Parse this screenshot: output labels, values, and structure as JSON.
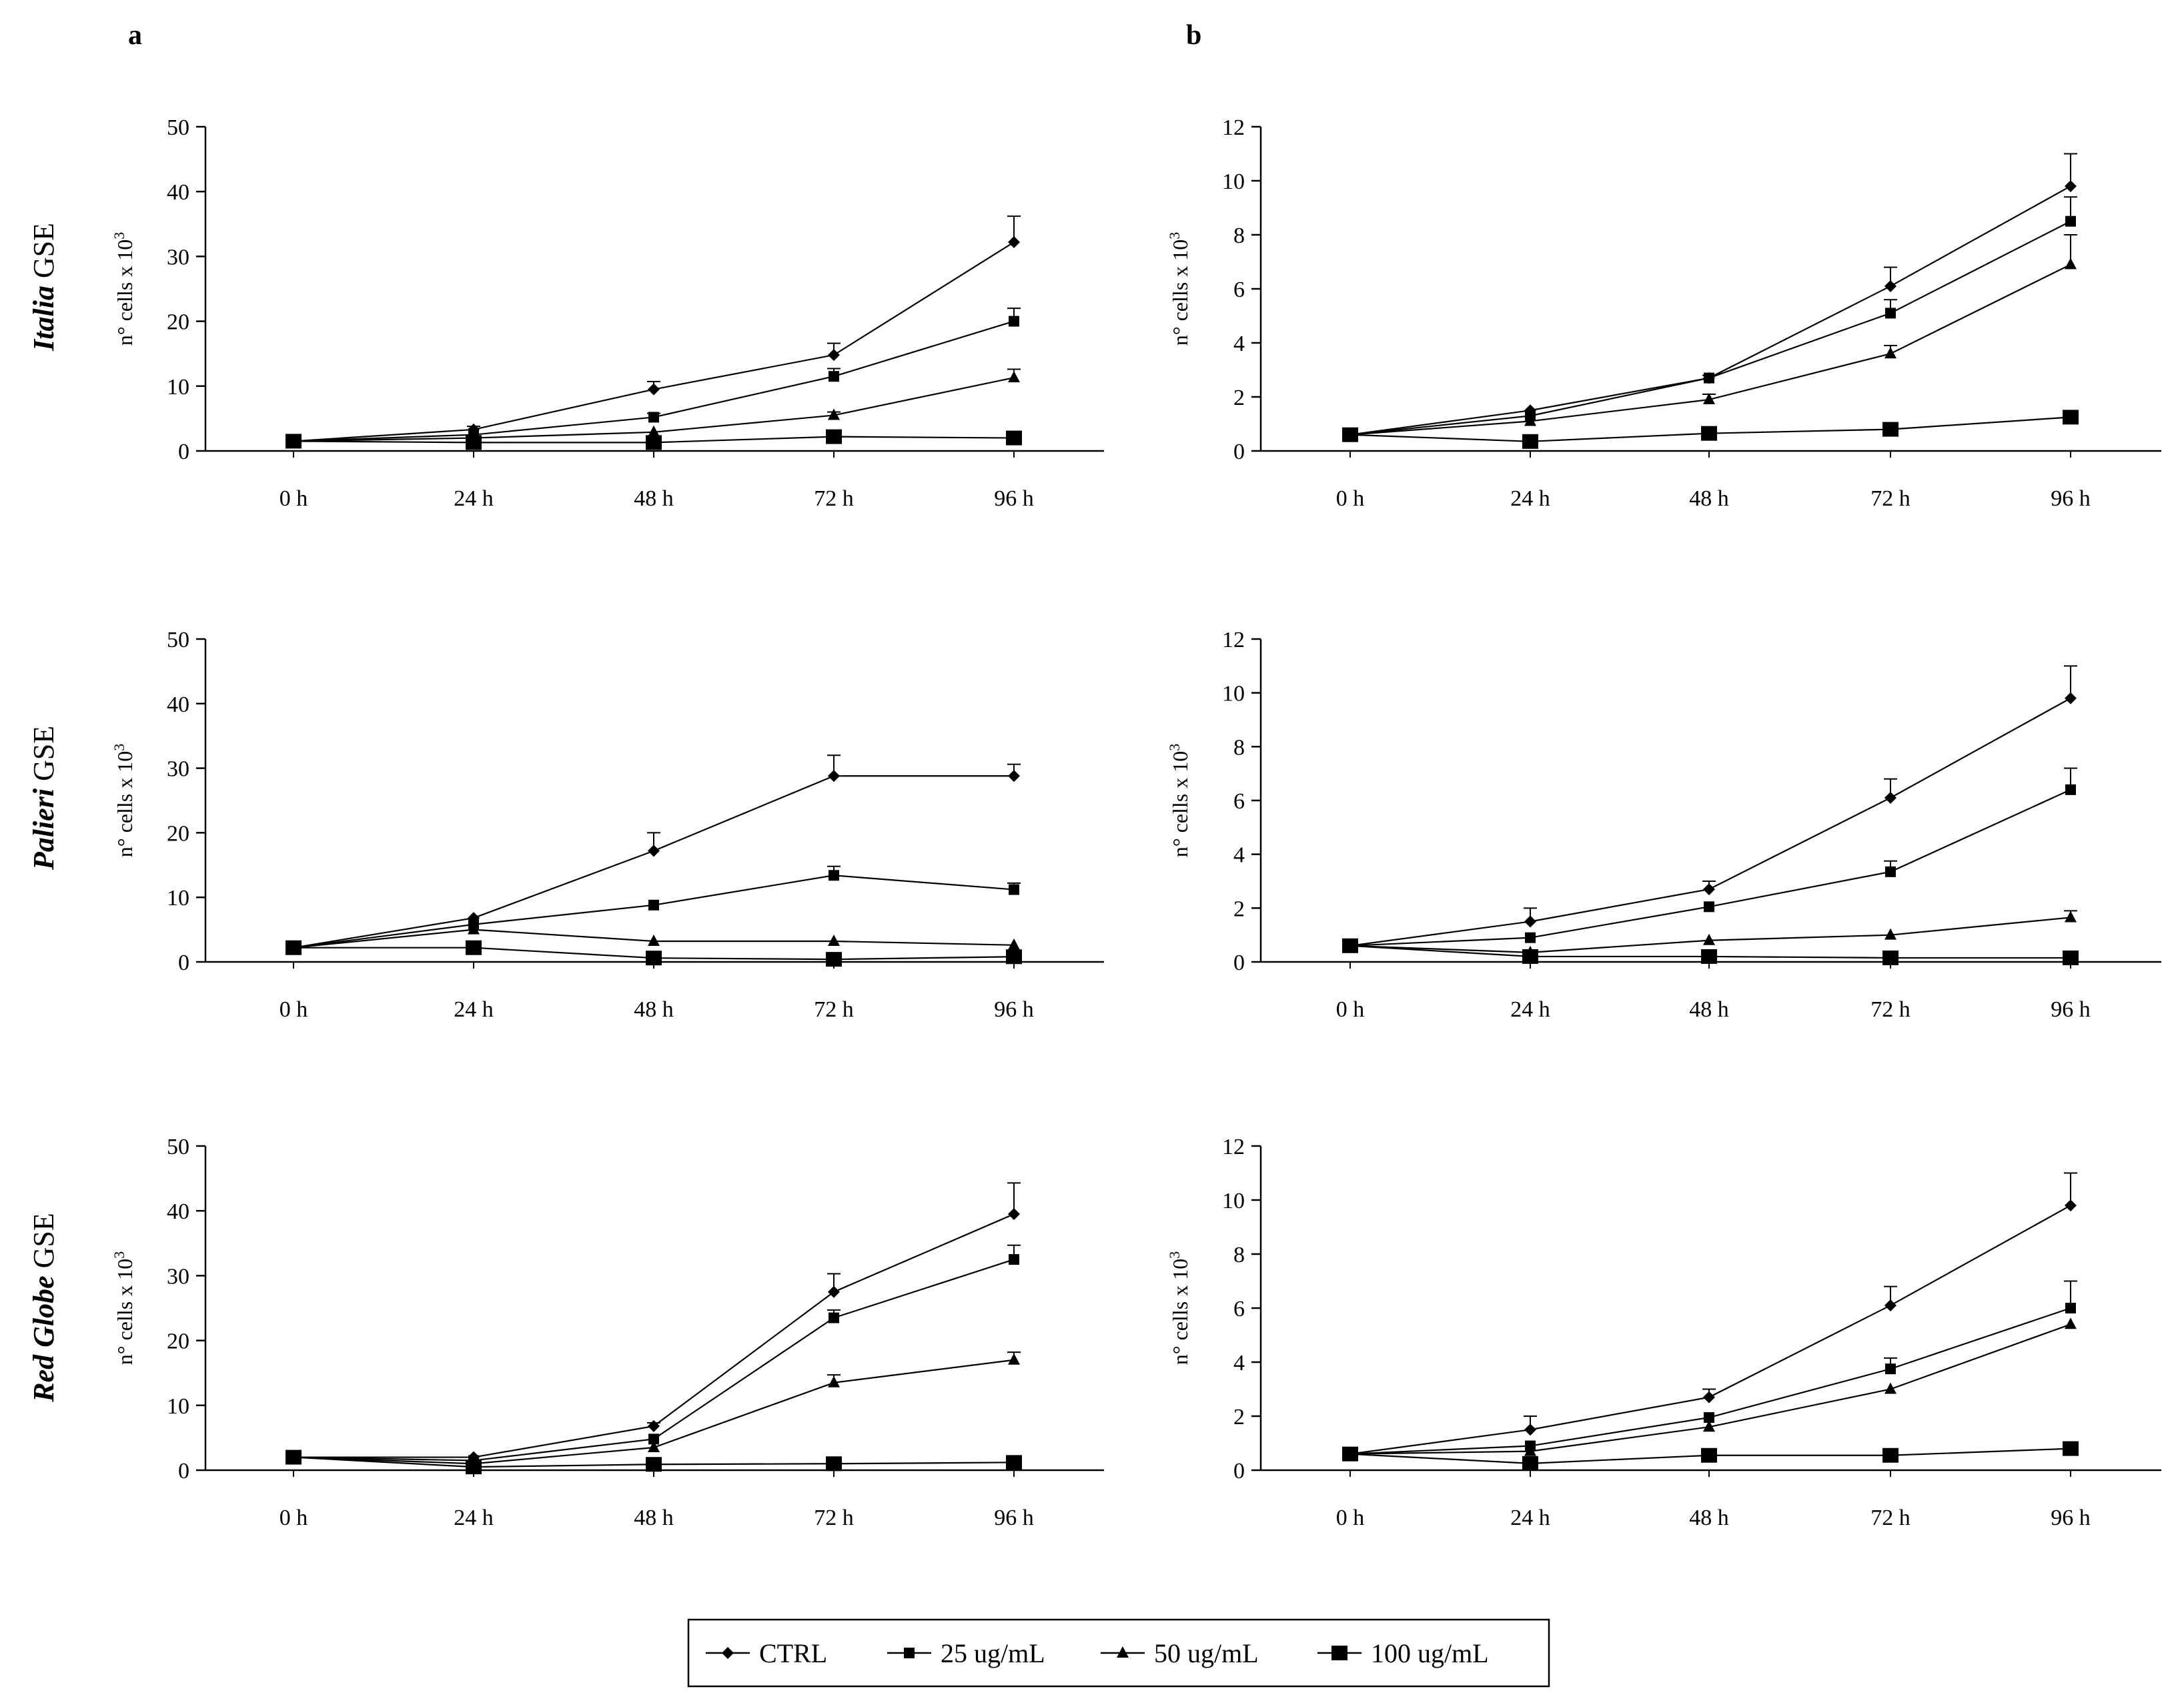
{
  "panel_labels": [
    "a",
    "b"
  ],
  "row_labels": [
    {
      "italic": "Italia",
      "rest": " GSE"
    },
    {
      "italic": "Palieri",
      "rest": " GSE"
    },
    {
      "italic": "Red Globe",
      "rest": " GSE"
    }
  ],
  "y_axis_label": "n° cells x 10",
  "y_axis_exponent": "3",
  "legend": [
    {
      "label": "CTRL",
      "marker": "diamond"
    },
    {
      "label": "25 ug/mL",
      "marker": "square-small"
    },
    {
      "label": "50 ug/mL",
      "marker": "triangle"
    },
    {
      "label": "100 ug/mL",
      "marker": "square-large"
    }
  ],
  "chart_data": [
    {
      "id": "a-italia",
      "type": "line",
      "panel": "a",
      "row": "Italia GSE",
      "categories": [
        "0 h",
        "24 h",
        "48 h",
        "72 h",
        "96 h"
      ],
      "ylim": [
        0,
        50
      ],
      "yticks": [
        0,
        10,
        20,
        30,
        40,
        50
      ],
      "ylabel": "n° cells x 10^3",
      "series": [
        {
          "name": "CTRL",
          "values": [
            1.5,
            3.3,
            9.5,
            14.8,
            32.2
          ],
          "errors": [
            0,
            0.5,
            1.2,
            1.8,
            4.0
          ]
        },
        {
          "name": "25 ug/mL",
          "values": [
            1.5,
            2.5,
            5.2,
            11.5,
            20.0
          ],
          "errors": [
            0,
            0,
            0.6,
            1.2,
            2.0
          ]
        },
        {
          "name": "50 ug/mL",
          "values": [
            1.5,
            2.0,
            2.9,
            5.5,
            11.3
          ],
          "errors": [
            0,
            0,
            0,
            0.5,
            1.3
          ]
        },
        {
          "name": "100 ug/mL",
          "values": [
            1.5,
            1.3,
            1.3,
            2.2,
            2.0
          ],
          "errors": [
            0,
            0,
            0,
            0,
            0
          ]
        }
      ]
    },
    {
      "id": "b-italia",
      "type": "line",
      "panel": "b",
      "row": "Italia GSE",
      "categories": [
        "0 h",
        "24 h",
        "48 h",
        "72 h",
        "96 h"
      ],
      "ylim": [
        0,
        12
      ],
      "yticks": [
        0,
        2,
        4,
        6,
        8,
        10,
        12
      ],
      "ylabel": "n° cells x 10^3",
      "series": [
        {
          "name": "CTRL",
          "values": [
            0.6,
            1.5,
            2.7,
            6.1,
            9.8
          ],
          "errors": [
            0,
            0,
            0.1,
            0.7,
            1.2
          ]
        },
        {
          "name": "25 ug/mL",
          "values": [
            0.6,
            1.3,
            2.7,
            5.1,
            8.5
          ],
          "errors": [
            0,
            0,
            0,
            0.5,
            0.9
          ]
        },
        {
          "name": "50 ug/mL",
          "values": [
            0.6,
            1.1,
            1.9,
            3.6,
            6.9
          ],
          "errors": [
            0,
            0,
            0.2,
            0.3,
            1.1
          ]
        },
        {
          "name": "100 ug/mL",
          "values": [
            0.6,
            0.35,
            0.65,
            0.8,
            1.25
          ],
          "errors": [
            0,
            0,
            0,
            0,
            0
          ]
        }
      ]
    },
    {
      "id": "a-palieri",
      "type": "line",
      "panel": "a",
      "row": "Palieri GSE",
      "categories": [
        "0 h",
        "24 h",
        "48 h",
        "72 h",
        "96 h"
      ],
      "ylim": [
        0,
        50
      ],
      "yticks": [
        0,
        10,
        20,
        30,
        40,
        50
      ],
      "ylabel": "n° cells x 10^3",
      "series": [
        {
          "name": "CTRL",
          "values": [
            2.2,
            6.8,
            17.2,
            28.8,
            28.8
          ],
          "errors": [
            0,
            0,
            2.8,
            3.2,
            1.8
          ]
        },
        {
          "name": "25 ug/mL",
          "values": [
            2.2,
            5.8,
            8.8,
            13.4,
            11.2
          ],
          "errors": [
            0,
            0,
            0,
            1.4,
            1.0
          ]
        },
        {
          "name": "50 ug/mL",
          "values": [
            2.2,
            5.0,
            3.2,
            3.2,
            2.6
          ],
          "errors": [
            0,
            0,
            0,
            0,
            0
          ]
        },
        {
          "name": "100 ug/mL",
          "values": [
            2.2,
            2.2,
            0.6,
            0.4,
            0.8
          ],
          "errors": [
            0,
            0,
            0,
            0,
            0
          ]
        }
      ]
    },
    {
      "id": "b-palieri",
      "type": "line",
      "panel": "b",
      "row": "Palieri GSE",
      "categories": [
        "0 h",
        "24 h",
        "48 h",
        "72 h",
        "96 h"
      ],
      "ylim": [
        0,
        12
      ],
      "yticks": [
        0,
        2,
        4,
        6,
        8,
        10,
        12
      ],
      "ylabel": "n° cells x 10^3",
      "series": [
        {
          "name": "CTRL",
          "values": [
            0.6,
            1.5,
            2.7,
            6.1,
            9.8
          ],
          "errors": [
            0,
            0.5,
            0.3,
            0.7,
            1.2
          ]
        },
        {
          "name": "25 ug/mL",
          "values": [
            0.6,
            0.9,
            2.05,
            3.35,
            6.4
          ],
          "errors": [
            0,
            0,
            0,
            0.4,
            0.8
          ]
        },
        {
          "name": "50 ug/mL",
          "values": [
            0.6,
            0.35,
            0.8,
            1.0,
            1.65
          ],
          "errors": [
            0,
            0,
            0,
            0,
            0.25
          ]
        },
        {
          "name": "100 ug/mL",
          "values": [
            0.6,
            0.2,
            0.2,
            0.15,
            0.15
          ],
          "errors": [
            0,
            0,
            0,
            0,
            0
          ]
        }
      ]
    },
    {
      "id": "a-redglobe",
      "type": "line",
      "panel": "a",
      "row": "Red Globe GSE",
      "categories": [
        "0 h",
        "24 h",
        "48 h",
        "72 h",
        "96 h"
      ],
      "ylim": [
        0,
        50
      ],
      "yticks": [
        0,
        10,
        20,
        30,
        40,
        50
      ],
      "ylabel": "n° cells x 10^3",
      "series": [
        {
          "name": "CTRL",
          "values": [
            2.0,
            2.0,
            6.8,
            27.5,
            39.5
          ],
          "errors": [
            0,
            0,
            0.5,
            2.8,
            4.8
          ]
        },
        {
          "name": "25 ug/mL",
          "values": [
            2.0,
            1.5,
            4.8,
            23.5,
            32.5
          ],
          "errors": [
            0,
            0,
            0,
            1.2,
            2.2
          ]
        },
        {
          "name": "50 ug/mL",
          "values": [
            2.0,
            1.0,
            3.5,
            13.5,
            17.0
          ],
          "errors": [
            0,
            0,
            0,
            1.2,
            1.2
          ]
        },
        {
          "name": "100 ug/mL",
          "values": [
            2.0,
            0.5,
            0.9,
            1.0,
            1.2
          ],
          "errors": [
            0,
            0,
            0,
            0,
            0
          ]
        }
      ]
    },
    {
      "id": "b-redglobe",
      "type": "line",
      "panel": "b",
      "row": "Red Globe GSE",
      "categories": [
        "0 h",
        "24 h",
        "48 h",
        "72 h",
        "96 h"
      ],
      "ylim": [
        0,
        12
      ],
      "yticks": [
        0,
        2,
        4,
        6,
        8,
        10,
        12
      ],
      "ylabel": "n° cells x 10^3",
      "series": [
        {
          "name": "CTRL",
          "values": [
            0.6,
            1.5,
            2.7,
            6.1,
            9.8
          ],
          "errors": [
            0,
            0.5,
            0.3,
            0.7,
            1.2
          ]
        },
        {
          "name": "25 ug/mL",
          "values": [
            0.6,
            0.9,
            1.95,
            3.75,
            6.0
          ],
          "errors": [
            0,
            0,
            0,
            0.4,
            1.0
          ]
        },
        {
          "name": "50 ug/mL",
          "values": [
            0.6,
            0.7,
            1.6,
            3.0,
            5.4
          ],
          "errors": [
            0,
            0,
            0,
            0,
            0
          ]
        },
        {
          "name": "100 ug/mL",
          "values": [
            0.6,
            0.25,
            0.55,
            0.55,
            0.8
          ],
          "errors": [
            0,
            0,
            0,
            0,
            0
          ]
        }
      ]
    }
  ]
}
